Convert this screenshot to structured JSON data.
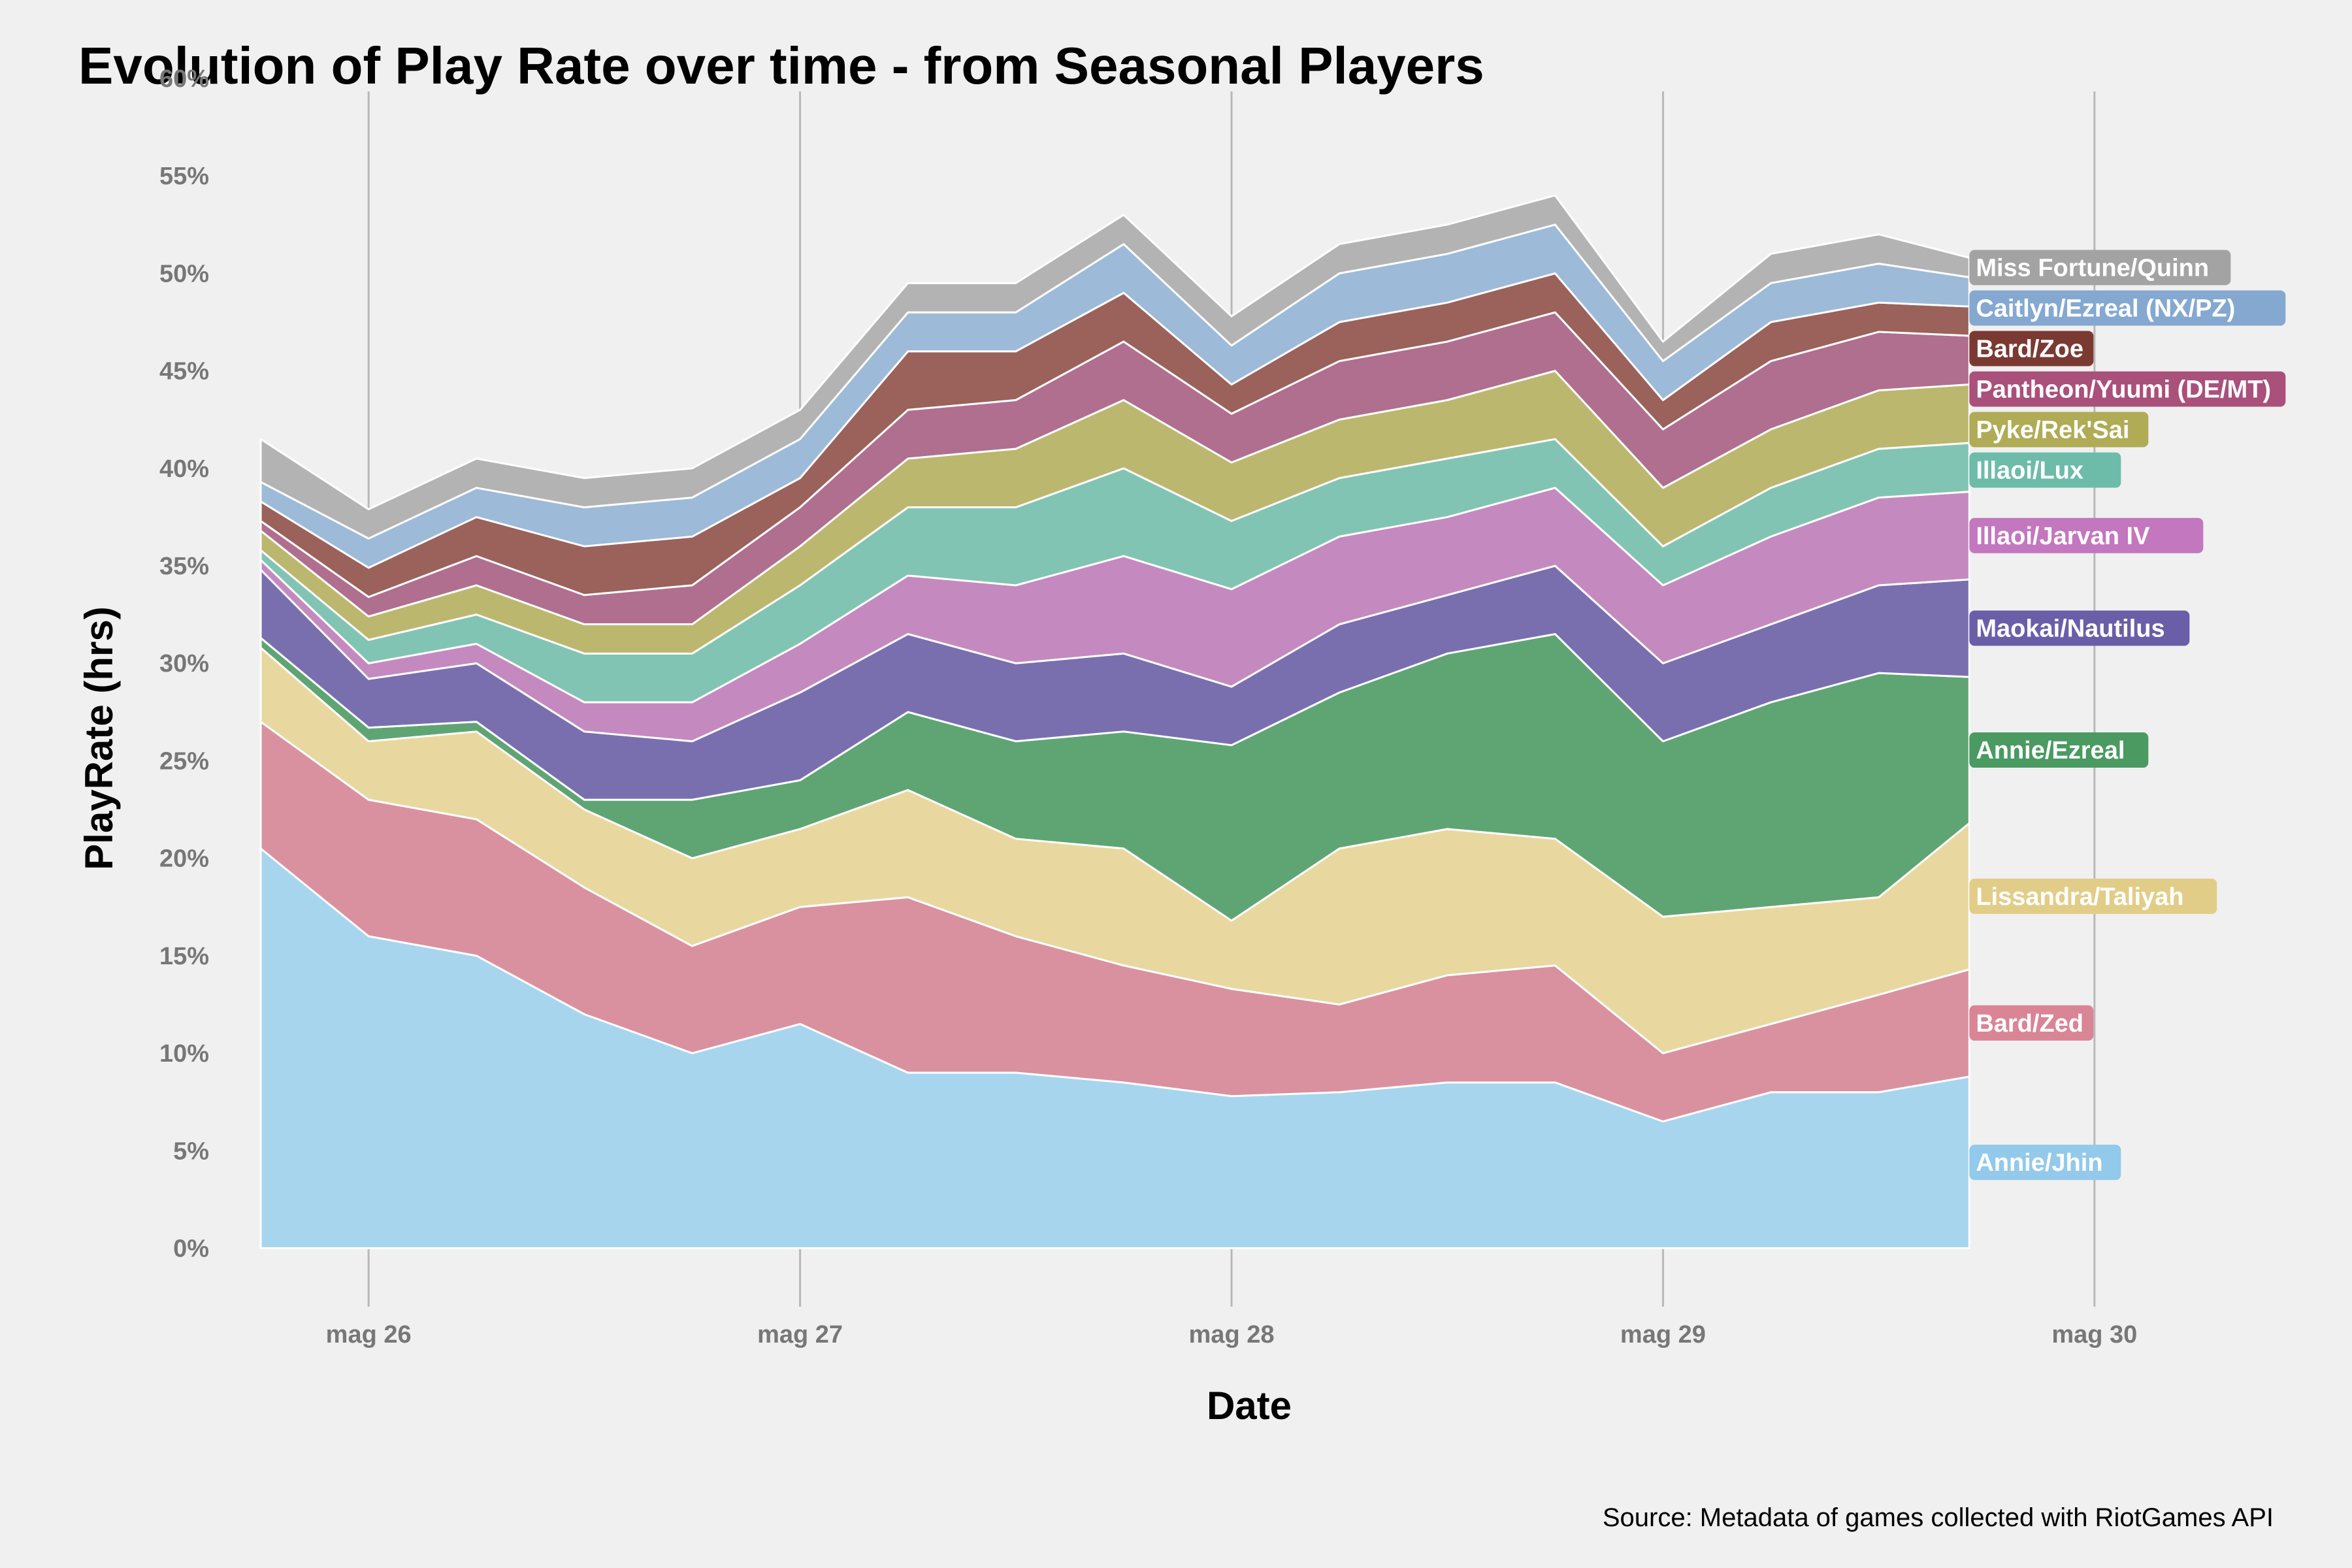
{
  "chart_data": {
    "type": "area",
    "stacked": true,
    "title": "Evolution of Play Rate over time - from Seasonal Players",
    "xlabel": "Date",
    "ylabel": "PlayRate (hrs)",
    "caption": "Source: Metadata of games collected with RiotGames API",
    "x_ticks": [
      "mag 26",
      "mag 27",
      "mag 28",
      "mag 29",
      "mag 30"
    ],
    "x_tick_days": [
      26,
      27,
      28,
      29,
      30
    ],
    "xlim_days": [
      25.6,
      30.4
    ],
    "y_ticks": [
      "0%",
      "5%",
      "10%",
      "15%",
      "20%",
      "25%",
      "30%",
      "35%",
      "40%",
      "45%",
      "50%",
      "55%",
      "60%"
    ],
    "y_tick_values": [
      0,
      5,
      10,
      15,
      20,
      25,
      30,
      35,
      40,
      45,
      50,
      55,
      60
    ],
    "ylim": [
      -3,
      60
    ],
    "grid": "vertical",
    "legend": "labels at series ends",
    "x_days": [
      25.75,
      26.0,
      26.25,
      26.5,
      26.75,
      27.0,
      27.25,
      27.5,
      27.75,
      28.0,
      28.25,
      28.5,
      28.75,
      29.0,
      29.25,
      29.5,
      29.71
    ],
    "series": [
      {
        "name": "Annie/Jhin",
        "color": "#a8d5ee",
        "label_color": "#93c9ea",
        "values": [
          20.5,
          16.0,
          15.0,
          12.0,
          10.0,
          11.5,
          9.0,
          9.0,
          8.5,
          7.8,
          8.0,
          8.5,
          8.5,
          6.5,
          8.0,
          8.0,
          8.8
        ]
      },
      {
        "name": "Bard/Zed",
        "color": "#d991a0",
        "label_color": "#d98595",
        "values": [
          6.5,
          7.0,
          7.0,
          6.5,
          5.5,
          6.0,
          9.0,
          7.0,
          6.0,
          5.5,
          4.5,
          5.5,
          6.0,
          3.5,
          3.5,
          5.0,
          5.5
        ]
      },
      {
        "name": "Lissandra/Taliyah",
        "color": "#e8d8a0",
        "label_color": "#e2cd88",
        "values": [
          3.8,
          3.0,
          4.5,
          4.0,
          4.5,
          4.0,
          5.5,
          5.0,
          6.0,
          3.5,
          8.0,
          7.5,
          6.5,
          7.0,
          6.0,
          5.0,
          7.5
        ]
      },
      {
        "name": "Annie/Ezreal",
        "color": "#5fa574",
        "label_color": "#4a9a62",
        "values": [
          0.5,
          0.7,
          0.5,
          0.5,
          3.0,
          2.5,
          4.0,
          5.0,
          6.0,
          9.0,
          8.0,
          9.0,
          10.5,
          9.0,
          10.5,
          11.5,
          7.5
        ]
      },
      {
        "name": "Maokai/Nautilus",
        "color": "#7a6fae",
        "label_color": "#6a5ea8",
        "values": [
          3.5,
          2.5,
          3.0,
          3.5,
          3.0,
          4.5,
          4.0,
          4.0,
          4.0,
          3.0,
          3.5,
          3.0,
          3.5,
          4.0,
          4.0,
          4.5,
          5.0
        ]
      },
      {
        "name": "Illaoi/Jarvan IV",
        "color": "#c48ac0",
        "label_color": "#c277be",
        "values": [
          0.5,
          0.8,
          1.0,
          1.5,
          2.0,
          2.5,
          3.0,
          4.0,
          5.0,
          5.0,
          4.5,
          4.0,
          4.0,
          4.0,
          4.5,
          4.5,
          4.5
        ]
      },
      {
        "name": "Illaoi/Lux",
        "color": "#82c4b3",
        "label_color": "#6dbba9",
        "values": [
          0.5,
          1.2,
          1.5,
          2.5,
          2.5,
          3.0,
          3.5,
          4.0,
          4.5,
          3.5,
          3.0,
          3.0,
          2.5,
          2.0,
          2.5,
          2.5,
          2.5
        ]
      },
      {
        "name": "Pyke/Rek'Sai",
        "color": "#bcb76e",
        "label_color": "#b0ab55",
        "values": [
          1.0,
          1.2,
          1.5,
          1.5,
          1.5,
          2.0,
          2.5,
          3.0,
          3.5,
          3.0,
          3.0,
          3.0,
          3.5,
          3.0,
          3.0,
          3.0,
          3.0
        ]
      },
      {
        "name": "Pantheon/Yuumi (DE/MT)",
        "color": "#b06f8e",
        "label_color": "#a9507b",
        "values": [
          0.5,
          1.0,
          1.5,
          1.5,
          2.0,
          2.0,
          2.5,
          2.5,
          3.0,
          2.5,
          3.0,
          3.0,
          3.0,
          3.0,
          3.5,
          3.0,
          2.5
        ]
      },
      {
        "name": "Bard/Zoe",
        "color": "#9a625a",
        "label_color": "#7a3a32",
        "values": [
          1.0,
          1.5,
          2.0,
          2.5,
          2.5,
          1.5,
          3.0,
          2.5,
          2.5,
          1.5,
          2.0,
          2.0,
          2.0,
          1.5,
          2.0,
          1.5,
          1.5
        ]
      },
      {
        "name": "Caitlyn/Ezreal (NX/PZ)",
        "color": "#9dbad8",
        "label_color": "#84a8d0",
        "values": [
          1.0,
          1.5,
          1.5,
          2.0,
          2.0,
          2.0,
          2.0,
          2.0,
          2.5,
          2.0,
          2.5,
          2.5,
          2.5,
          2.0,
          2.0,
          2.0,
          1.5
        ]
      },
      {
        "name": "Miss Fortune/Quinn",
        "color": "#b3b3b3",
        "label_color": "#a3a3a3",
        "values": [
          2.2,
          1.5,
          1.5,
          1.5,
          1.5,
          1.5,
          1.5,
          1.5,
          1.5,
          1.5,
          1.5,
          1.5,
          1.5,
          1.0,
          1.5,
          1.5,
          1.0
        ]
      }
    ]
  }
}
